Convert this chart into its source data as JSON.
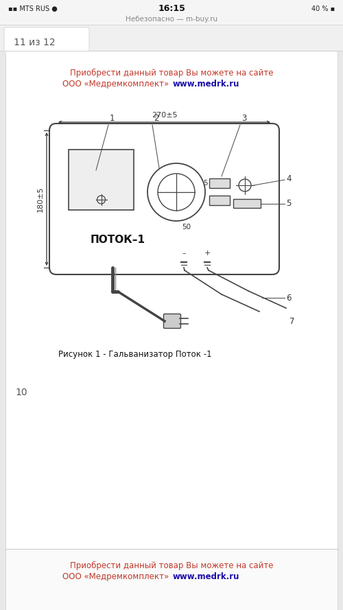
{
  "bg_color": "#e8e8e8",
  "page_bg": "#ffffff",
  "title_text1": "Приобрести данный товар Вы можете на сайте",
  "title_text2_red": "ООО «Медремкомплект» ",
  "title_text2_blue": "www.medrk.ru",
  "title_color": "#c0392b",
  "title_url_color": "#1a0dab",
  "page_label": "11 из 12",
  "status_bar": "Небезопасно — m-buy.ru",
  "time": "16:15",
  "signal": "MTS RUS",
  "battery": "40 %",
  "bottom_page": "10",
  "caption": "Рисунок 1 - Гальванизатор Поток -1",
  "device_label": "ПОТОК–1",
  "dim_width": "270±5",
  "dim_height": "180±5",
  "label_50": "50",
  "label_5": "5",
  "minus_sign": "–",
  "plus_sign": "+",
  "numbers": [
    "1",
    "2",
    "3",
    "4",
    "5",
    "6",
    "7"
  ]
}
